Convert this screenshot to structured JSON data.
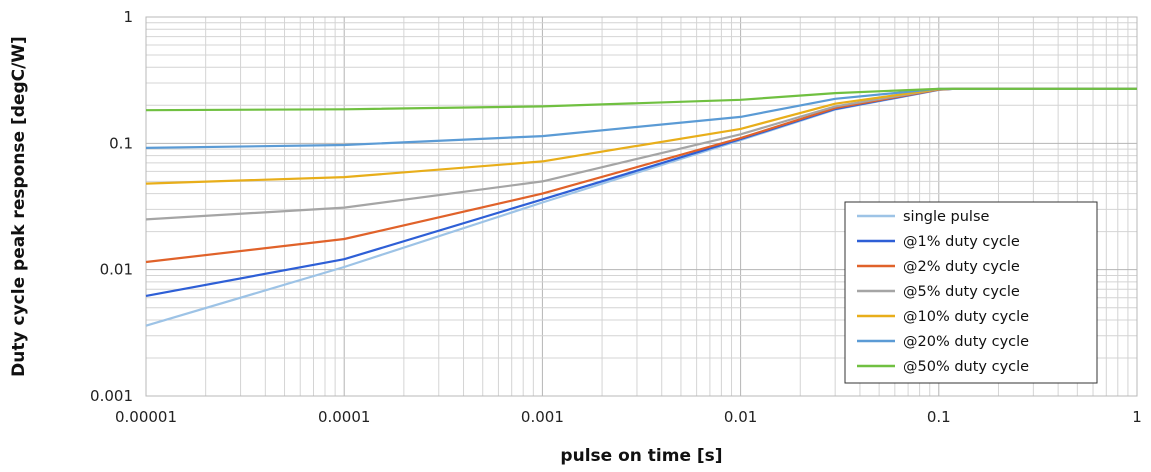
{
  "chart_data": {
    "type": "line",
    "title": "",
    "xlabel": "pulse on time [s]",
    "ylabel": "Duty cycle peak response [degC/W]",
    "xscale": "log",
    "yscale": "log",
    "xlim": [
      1e-05,
      1
    ],
    "ylim": [
      0.001,
      1
    ],
    "x_ticks": [
      {
        "value": 1e-05,
        "label": "0.00001"
      },
      {
        "value": 0.0001,
        "label": "0.0001"
      },
      {
        "value": 0.001,
        "label": "0.001"
      },
      {
        "value": 0.01,
        "label": "0.01"
      },
      {
        "value": 0.1,
        "label": "0.1"
      },
      {
        "value": 1,
        "label": "1"
      }
    ],
    "y_ticks": [
      {
        "value": 0.001,
        "label": "0.001"
      },
      {
        "value": 0.01,
        "label": "0.01"
      },
      {
        "value": 0.1,
        "label": "0.1"
      },
      {
        "value": 1,
        "label": "1"
      }
    ],
    "grid": "major and minor",
    "legend_position": "bottom-right",
    "series": [
      {
        "name": "single pulse",
        "color": "#9dc3e6",
        "x": [
          1e-05,
          0.0001,
          0.001,
          0.01,
          0.03,
          0.1,
          0.12,
          1
        ],
        "y": [
          0.0036,
          0.0105,
          0.034,
          0.106,
          0.185,
          0.265,
          0.27,
          0.27
        ]
      },
      {
        "name": "@1% duty cycle",
        "color": "#2e5fd6",
        "x": [
          1e-05,
          0.0001,
          0.001,
          0.01,
          0.03,
          0.1,
          0.12,
          1
        ],
        "y": [
          0.0062,
          0.0121,
          0.036,
          0.108,
          0.187,
          0.266,
          0.27,
          0.27
        ]
      },
      {
        "name": "@2% duty cycle",
        "color": "#e0622a",
        "x": [
          1e-05,
          0.0001,
          0.001,
          0.01,
          0.03,
          0.1,
          0.12,
          1
        ],
        "y": [
          0.0115,
          0.0175,
          0.04,
          0.11,
          0.19,
          0.267,
          0.27,
          0.27
        ]
      },
      {
        "name": "@5% duty cycle",
        "color": "#a5a5a5",
        "x": [
          1e-05,
          0.0001,
          0.001,
          0.01,
          0.03,
          0.1,
          0.12,
          1
        ],
        "y": [
          0.025,
          0.031,
          0.05,
          0.118,
          0.196,
          0.268,
          0.27,
          0.27
        ]
      },
      {
        "name": "@10% duty cycle",
        "color": "#e8ae1a",
        "x": [
          1e-05,
          0.0001,
          0.001,
          0.01,
          0.03,
          0.1,
          0.12,
          1
        ],
        "y": [
          0.048,
          0.054,
          0.072,
          0.13,
          0.206,
          0.268,
          0.27,
          0.27
        ]
      },
      {
        "name": "@20% duty cycle",
        "color": "#5b9bd5",
        "x": [
          1e-05,
          0.0001,
          0.001,
          0.01,
          0.03,
          0.1,
          0.12,
          1
        ],
        "y": [
          0.092,
          0.097,
          0.114,
          0.162,
          0.225,
          0.27,
          0.27,
          0.27
        ]
      },
      {
        "name": "@50% duty cycle",
        "color": "#70c041",
        "x": [
          1e-05,
          0.0001,
          0.001,
          0.01,
          0.03,
          0.1,
          0.12,
          1
        ],
        "y": [
          0.183,
          0.186,
          0.196,
          0.221,
          0.25,
          0.27,
          0.27,
          0.27
        ]
      }
    ]
  }
}
